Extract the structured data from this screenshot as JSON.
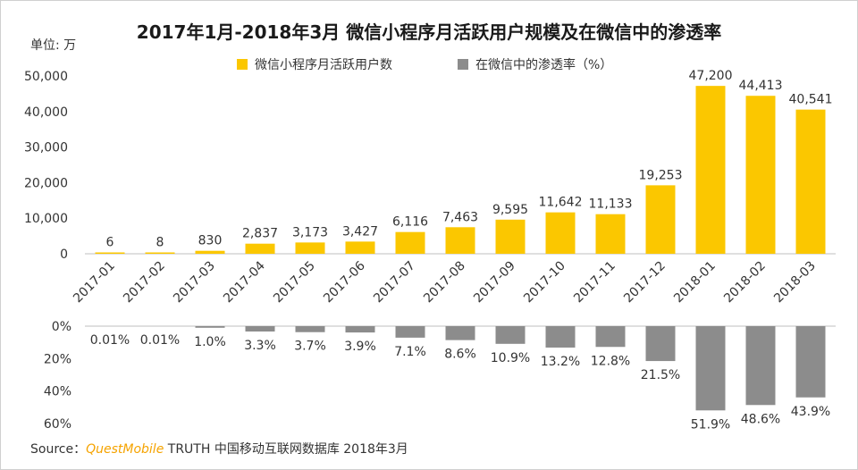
{
  "chart_data": {
    "type": "bar",
    "title": "2017年1月-2018年3月 微信小程序月活跃用户规模及在微信中的渗透率",
    "unit_label": "单位: 万",
    "categories": [
      "2017-01",
      "2017-02",
      "2017-03",
      "2017-04",
      "2017-05",
      "2017-06",
      "2017-07",
      "2017-08",
      "2017-09",
      "2017-10",
      "2017-11",
      "2017-12",
      "2018-01",
      "2018-02",
      "2018-03"
    ],
    "series": [
      {
        "name": "微信小程序月活跃用户数",
        "color": "#fbc700",
        "values": [
          6,
          8,
          830,
          2837,
          3173,
          3427,
          6116,
          7463,
          9595,
          11642,
          11133,
          19253,
          47200,
          44413,
          40541
        ],
        "labels": [
          "6",
          "8",
          "830",
          "2,837",
          "3,173",
          "3,427",
          "6,116",
          "7,463",
          "9,595",
          "11,642",
          "11,133",
          "19,253",
          "47,200",
          "44,413",
          "40,541"
        ]
      },
      {
        "name": "在微信中的渗透率（%）",
        "color": "#8c8c8c",
        "values": [
          0.01,
          0.01,
          1.0,
          3.3,
          3.7,
          3.9,
          7.1,
          8.6,
          10.9,
          13.2,
          12.8,
          21.5,
          51.9,
          48.6,
          43.9
        ],
        "labels": [
          "0.01%",
          "0.01%",
          "1.0%",
          "3.3%",
          "3.7%",
          "3.9%",
          "7.1%",
          "8.6%",
          "10.9%",
          "13.2%",
          "12.8%",
          "21.5%",
          "51.9%",
          "48.6%",
          "43.9%"
        ]
      }
    ],
    "top_axis": {
      "ylim": [
        0,
        50000
      ],
      "ticks": [
        "0",
        "10,000",
        "20,000",
        "30,000",
        "40,000",
        "50,000"
      ],
      "tick_values": [
        0,
        10000,
        20000,
        30000,
        40000,
        50000
      ]
    },
    "bottom_axis": {
      "ylim": [
        0,
        60
      ],
      "ticks": [
        "0%",
        "20%",
        "40%",
        "60%"
      ],
      "tick_values": [
        0,
        20,
        40,
        60
      ]
    },
    "source": {
      "prefix": "Source：",
      "brand": "QuestMobile",
      "rest": "TRUTH 中国移动互联网数据库 2018年3月"
    }
  }
}
